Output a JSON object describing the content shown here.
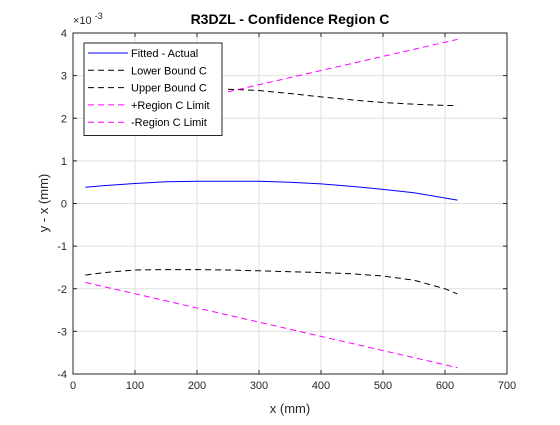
{
  "chart_data": {
    "type": "line",
    "title": "R3DZL - Confidence Region C",
    "xlabel": "x (mm)",
    "ylabel": "y - x (mm)",
    "y_exponent": {
      "base": "×10",
      "power": "-3"
    },
    "xlim": [
      0,
      700
    ],
    "ylim": [
      -4,
      4
    ],
    "xticks": [
      0,
      100,
      200,
      300,
      400,
      500,
      600,
      700
    ],
    "yticks": [
      -4,
      -3,
      -2,
      -1,
      0,
      1,
      2,
      3,
      4
    ],
    "grid": true,
    "legend_position": "top-left",
    "series": [
      {
        "name": "Fitted - Actual",
        "color": "#0000ff",
        "dash": "solid",
        "x": [
          20,
          50,
          100,
          150,
          200,
          250,
          300,
          350,
          400,
          450,
          500,
          550,
          600,
          620
        ],
        "y": [
          0.38,
          0.42,
          0.47,
          0.51,
          0.52,
          0.52,
          0.52,
          0.5,
          0.46,
          0.4,
          0.33,
          0.25,
          0.13,
          0.08
        ]
      },
      {
        "name": "Lower Bound C",
        "color": "#000000",
        "dash": "dashed",
        "x": [
          250,
          300,
          350,
          400,
          450,
          500,
          550,
          600,
          620
        ],
        "y": [
          2.68,
          2.65,
          2.58,
          2.5,
          2.43,
          2.37,
          2.33,
          2.3,
          2.3
        ]
      },
      {
        "name": "Upper Bound C",
        "color": "#000000",
        "dash": "dashed",
        "x": [
          20,
          50,
          100,
          150,
          200,
          250,
          300,
          350,
          400,
          450,
          500,
          550,
          600,
          620
        ],
        "y": [
          -1.68,
          -1.62,
          -1.56,
          -1.55,
          -1.55,
          -1.56,
          -1.58,
          -1.6,
          -1.62,
          -1.65,
          -1.7,
          -1.8,
          -2.0,
          -2.12
        ]
      },
      {
        "name": "+Region C Limit",
        "color": "#ff00ff",
        "dash": "dashed",
        "x": [
          250,
          620
        ],
        "y": [
          2.62,
          3.85
        ]
      },
      {
        "name": "-Region C Limit",
        "color": "#ff00ff",
        "dash": "dashed",
        "x": [
          20,
          620
        ],
        "y": [
          -1.85,
          -3.85
        ]
      }
    ]
  }
}
